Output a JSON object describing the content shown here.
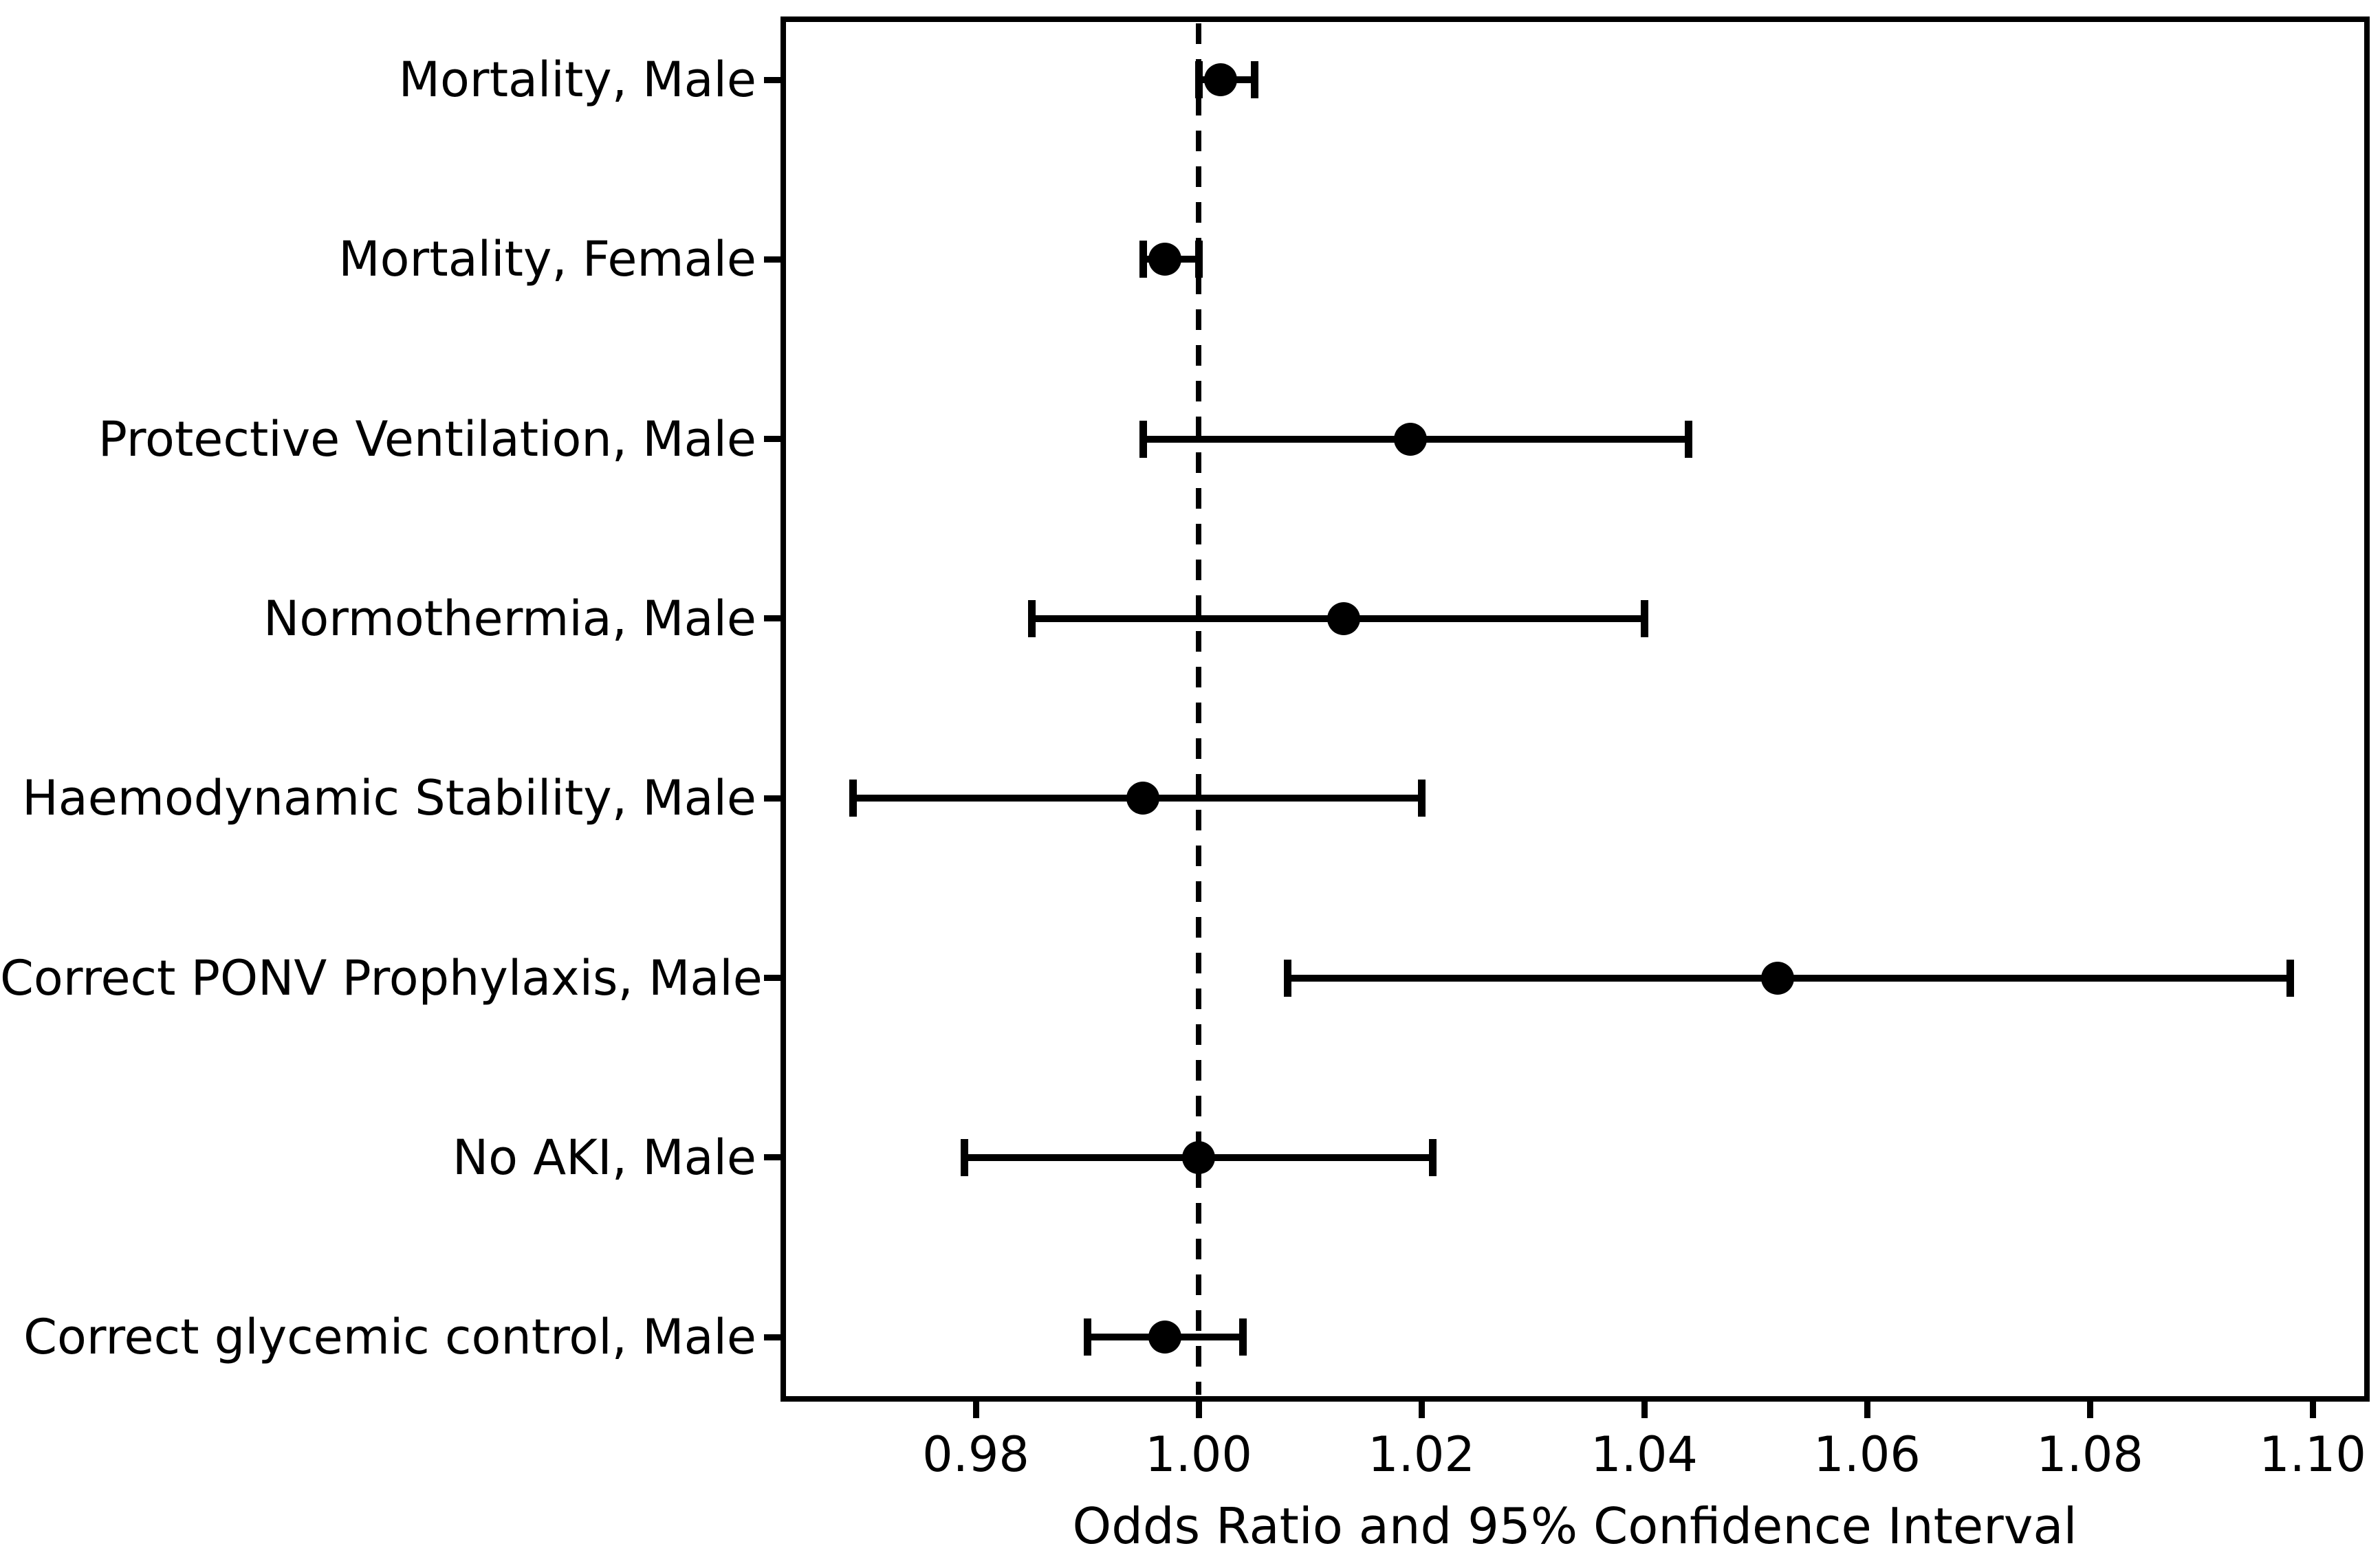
{
  "chart_data": {
    "type": "scatter",
    "variant": "forest-plot",
    "title": "",
    "xlabel": "Odds Ratio and 95% Confidence Interval",
    "ylabel": "",
    "xlim": [
      0.963,
      1.105
    ],
    "xtick_labels": [
      "0.98",
      "1.00",
      "1.02",
      "1.04",
      "1.06",
      "1.08",
      "1.10"
    ],
    "xtick_values": [
      0.98,
      1.0,
      1.02,
      1.04,
      1.06,
      1.08,
      1.1
    ],
    "grid": false,
    "legend_position": "none",
    "reference_line": {
      "x": 1.0,
      "style": "dashed",
      "color": "#000000"
    },
    "categories": [
      "Mortality, Male",
      "Mortality, Female",
      "Protective Ventilation, Male",
      "Normothermia, Male",
      "Haemodynamic Stability, Male",
      "Correct PONV Prophylaxis, Male",
      "No AKI, Male",
      "Correct glycemic control, Male"
    ],
    "series": [
      {
        "name": "Odds Ratio and 95% Confidence Interval",
        "points": [
          {
            "label": "Mortality, Male",
            "or": 1.002,
            "ci_low": 1.0,
            "ci_high": 1.005
          },
          {
            "label": "Mortality, Female",
            "or": 0.997,
            "ci_low": 0.995,
            "ci_high": 1.0
          },
          {
            "label": "Protective Ventilation, Male",
            "or": 1.019,
            "ci_low": 0.995,
            "ci_high": 1.044
          },
          {
            "label": "Normothermia, Male",
            "or": 1.013,
            "ci_low": 0.985,
            "ci_high": 1.04
          },
          {
            "label": "Haemodynamic Stability, Male",
            "or": 0.995,
            "ci_low": 0.969,
            "ci_high": 1.02
          },
          {
            "label": "Correct PONV Prophylaxis, Male",
            "or": 1.052,
            "ci_low": 1.008,
            "ci_high": 1.098
          },
          {
            "label": "No AKI, Male",
            "or": 1.0,
            "ci_low": 0.979,
            "ci_high": 1.021
          },
          {
            "label": "Correct glycemic control, Male",
            "or": 0.997,
            "ci_low": 0.99,
            "ci_high": 1.004
          }
        ]
      }
    ]
  },
  "colors": {
    "marker": "#000000",
    "error_bar": "#000000",
    "text": "#000000",
    "spine": "#000000",
    "background": "#ffffff"
  }
}
